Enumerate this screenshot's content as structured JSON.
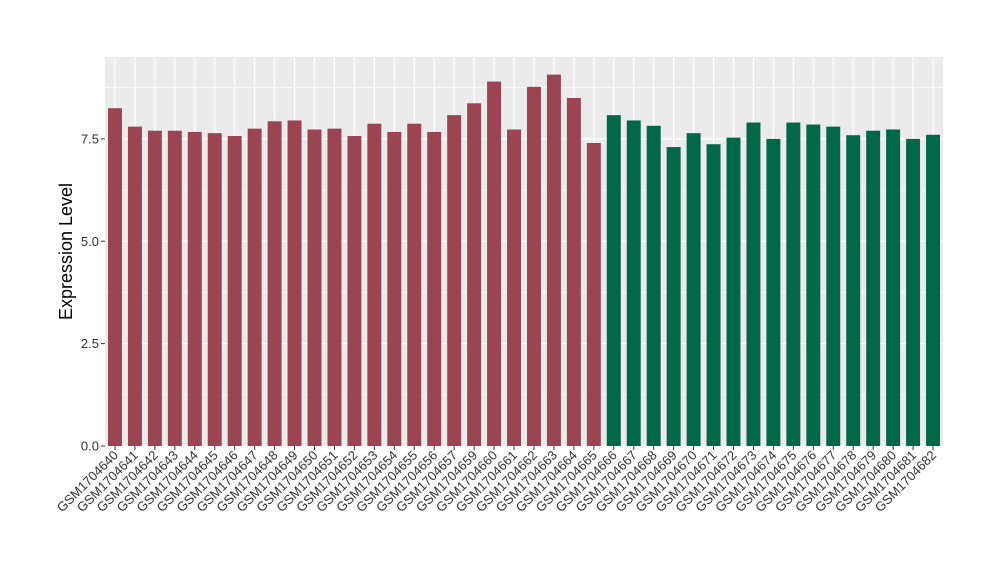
{
  "chart_data": {
    "type": "bar",
    "title": "",
    "xlabel": "",
    "ylabel": "Expression Level",
    "ylim": [
      0,
      9.5
    ],
    "yticks": [
      0.0,
      2.5,
      5.0,
      7.5
    ],
    "ytick_labels": [
      "0.0",
      "2.5",
      "5.0",
      "7.5"
    ],
    "grid": true,
    "legend": "none",
    "colors": {
      "panel_background": "#ebebeb",
      "grid": "#ffffff",
      "group_1": "#9b4452",
      "group_2": "#006847"
    },
    "categories": [
      "GSM1704640",
      "GSM1704641",
      "GSM1704642",
      "GSM1704643",
      "GSM1704644",
      "GSM1704645",
      "GSM1704646",
      "GSM1704647",
      "GSM1704648",
      "GSM1704649",
      "GSM1704650",
      "GSM1704651",
      "GSM1704652",
      "GSM1704653",
      "GSM1704654",
      "GSM1704655",
      "GSM1704656",
      "GSM1704657",
      "GSM1704659",
      "GSM1704660",
      "GSM1704661",
      "GSM1704662",
      "GSM1704663",
      "GSM1704664",
      "GSM1704665",
      "GSM1704666",
      "GSM1704667",
      "GSM1704668",
      "GSM1704669",
      "GSM1704670",
      "GSM1704671",
      "GSM1704672",
      "GSM1704673",
      "GSM1704674",
      "GSM1704675",
      "GSM1704676",
      "GSM1704677",
      "GSM1704678",
      "GSM1704679",
      "GSM1704680",
      "GSM1704681",
      "GSM1704682"
    ],
    "values": [
      8.25,
      7.8,
      7.7,
      7.7,
      7.67,
      7.64,
      7.57,
      7.75,
      7.93,
      7.95,
      7.73,
      7.75,
      7.57,
      7.87,
      7.67,
      7.87,
      7.67,
      8.08,
      8.37,
      8.9,
      7.73,
      8.77,
      9.07,
      8.5,
      7.4,
      8.08,
      7.95,
      7.82,
      7.3,
      7.64,
      7.37,
      7.53,
      7.9,
      7.5,
      7.9,
      7.85,
      7.8,
      7.59,
      7.7,
      7.73,
      7.5,
      7.6
    ],
    "groups": [
      1,
      1,
      1,
      1,
      1,
      1,
      1,
      1,
      1,
      1,
      1,
      1,
      1,
      1,
      1,
      1,
      1,
      1,
      1,
      1,
      1,
      1,
      1,
      1,
      1,
      2,
      2,
      2,
      2,
      2,
      2,
      2,
      2,
      2,
      2,
      2,
      2,
      2,
      2,
      2,
      2,
      2
    ]
  }
}
